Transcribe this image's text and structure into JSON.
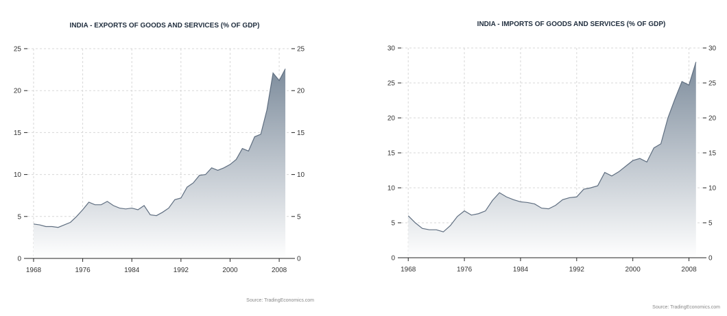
{
  "colors": {
    "area_top": "#7d8c9c",
    "area_bottom": "#ffffff",
    "line": "#5f6e80"
  },
  "chart_data": [
    {
      "type": "area",
      "title": "INDIA - EXPORTS OF GOODS AND SERVICES (% OF GDP)",
      "source": "Source: TradingEconomics.com",
      "x_ticks": [
        "1968",
        "1976",
        "1984",
        "1992",
        "2000",
        "2008"
      ],
      "y_ticks": [
        "0",
        "5",
        "10",
        "15",
        "20",
        "25"
      ],
      "y_ticks_right": [
        "0",
        "5",
        "10",
        "15",
        "20",
        "25"
      ],
      "xlim": [
        1967,
        2010
      ],
      "ylim": [
        0,
        25
      ],
      "x": [
        1968,
        1969,
        1970,
        1971,
        1972,
        1973,
        1974,
        1975,
        1976,
        1977,
        1978,
        1979,
        1980,
        1981,
        1982,
        1983,
        1984,
        1985,
        1986,
        1987,
        1988,
        1989,
        1990,
        1991,
        1992,
        1993,
        1994,
        1995,
        1996,
        1997,
        1998,
        1999,
        2000,
        2001,
        2002,
        2003,
        2004,
        2005,
        2006,
        2007,
        2008,
        2009
      ],
      "values": [
        4.1,
        4.0,
        3.8,
        3.8,
        3.7,
        4.0,
        4.3,
        5.0,
        5.8,
        6.7,
        6.4,
        6.4,
        6.8,
        6.3,
        6.0,
        5.9,
        6.0,
        5.8,
        6.3,
        5.2,
        5.1,
        5.5,
        6.0,
        7.0,
        7.2,
        8.5,
        9.0,
        9.9,
        10.0,
        10.8,
        10.5,
        10.8,
        11.2,
        11.8,
        13.1,
        12.8,
        14.5,
        14.8,
        17.7,
        22.1,
        21.2,
        22.6
      ]
    },
    {
      "type": "area",
      "title": "INDIA - IMPORTS OF GOODS AND SERVICES (% OF GDP)",
      "source": "Source: TradingEconomics.com",
      "x_ticks": [
        "1968",
        "1976",
        "1984",
        "1992",
        "2000",
        "2008"
      ],
      "y_ticks": [
        "0",
        "5",
        "10",
        "15",
        "20",
        "25",
        "30"
      ],
      "y_ticks_right": [
        "0",
        "5",
        "10",
        "15",
        "20",
        "25",
        "30"
      ],
      "xlim": [
        1967,
        2010
      ],
      "ylim": [
        0,
        30
      ],
      "x": [
        1968,
        1969,
        1970,
        1971,
        1972,
        1973,
        1974,
        1975,
        1976,
        1977,
        1978,
        1979,
        1980,
        1981,
        1982,
        1983,
        1984,
        1985,
        1986,
        1987,
        1988,
        1989,
        1990,
        1991,
        1992,
        1993,
        1994,
        1995,
        1996,
        1997,
        1998,
        1999,
        2000,
        2001,
        2002,
        2003,
        2004,
        2005,
        2006,
        2007,
        2008,
        2009
      ],
      "values": [
        6.0,
        5.0,
        4.2,
        4.0,
        4.0,
        3.7,
        4.6,
        5.9,
        6.7,
        6.1,
        6.3,
        6.7,
        8.2,
        9.3,
        8.7,
        8.3,
        8.0,
        7.9,
        7.7,
        7.1,
        7.0,
        7.5,
        8.3,
        8.6,
        8.7,
        9.8,
        10.0,
        10.3,
        12.2,
        11.7,
        12.3,
        13.1,
        13.9,
        14.2,
        13.7,
        15.7,
        16.3,
        20.0,
        22.7,
        25.2,
        24.7,
        28.0
      ]
    }
  ]
}
